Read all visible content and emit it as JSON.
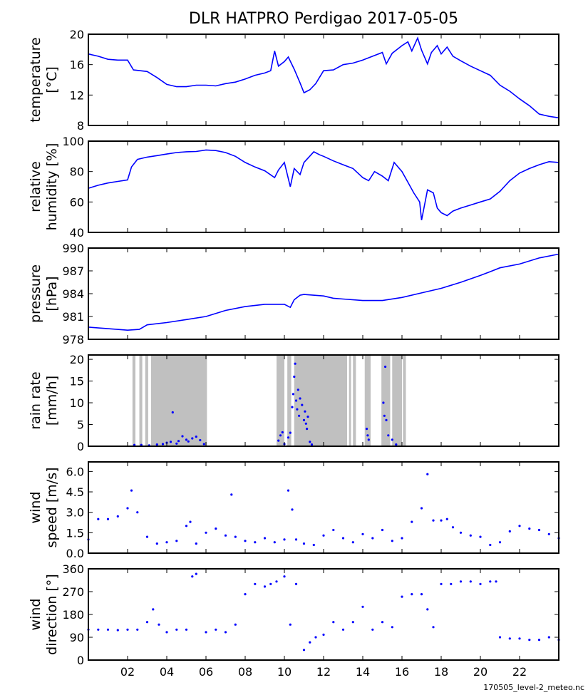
{
  "figure": {
    "title": "DLR HATPRO  Perdigao  2017-05-05",
    "footer": "170505_level-2_meteo.nc",
    "line_color": "#0000ff",
    "rain_band_color": "#c0c0c0"
  },
  "chart_data": [
    {
      "id": "temperature",
      "type": "line",
      "ylabel": [
        "temperature",
        "[°C]"
      ],
      "ylim": [
        8,
        20
      ],
      "yticks": [
        8,
        12,
        16,
        20
      ],
      "xlim": [
        0,
        24
      ],
      "x": [
        0,
        0.5,
        1,
        1.5,
        2,
        2.3,
        3,
        3.5,
        4,
        4.5,
        5,
        5.5,
        6,
        6.5,
        7,
        7.5,
        8,
        8.5,
        9,
        9.3,
        9.5,
        9.7,
        10,
        10.2,
        10.5,
        10.8,
        11,
        11.3,
        11.6,
        12,
        12.5,
        13,
        13.5,
        14,
        14.5,
        15,
        15.2,
        15.5,
        16,
        16.3,
        16.5,
        16.8,
        17,
        17.3,
        17.5,
        17.8,
        18,
        18.3,
        18.6,
        19,
        19.5,
        20,
        20.5,
        21,
        21.5,
        22,
        22.5,
        23,
        23.5,
        24
      ],
      "y": [
        17.4,
        17.1,
        16.7,
        16.6,
        16.6,
        15.3,
        15.1,
        14.3,
        13.4,
        13.1,
        13.1,
        13.3,
        13.3,
        13.2,
        13.5,
        13.7,
        14.1,
        14.6,
        14.9,
        15.2,
        17.8,
        15.8,
        16.4,
        17,
        15.4,
        13.6,
        12.3,
        12.7,
        13.5,
        15.2,
        15.3,
        16,
        16.2,
        16.6,
        17.1,
        17.6,
        16.1,
        17.5,
        18.5,
        19,
        17.8,
        19.5,
        17.9,
        16.1,
        17.6,
        18.5,
        17.4,
        18.3,
        17.1,
        16.5,
        15.8,
        15.2,
        14.6,
        13.3,
        12.5,
        11.5,
        10.6,
        9.5,
        9.2,
        9
      ],
      "series": [
        {
          "name": "temperature"
        }
      ]
    },
    {
      "id": "humidity",
      "type": "line",
      "ylabel": [
        "relative",
        "humidity [%]"
      ],
      "ylim": [
        40,
        100
      ],
      "yticks": [
        40,
        60,
        80,
        100
      ],
      "xlim": [
        0,
        24
      ],
      "x": [
        0,
        0.5,
        1,
        1.5,
        2,
        2.2,
        2.5,
        3,
        3.5,
        4,
        4.5,
        5,
        5.5,
        6,
        6.5,
        7,
        7.5,
        8,
        8.5,
        9,
        9.5,
        9.7,
        10,
        10.3,
        10.5,
        10.8,
        11,
        11.5,
        11.8,
        12,
        12.5,
        13,
        13.5,
        14,
        14.3,
        14.6,
        15,
        15.3,
        15.6,
        16,
        16.3,
        16.6,
        16.9,
        17,
        17.3,
        17.6,
        17.8,
        18,
        18.3,
        18.6,
        19,
        19.5,
        20,
        20.5,
        21,
        21.5,
        22,
        22.5,
        23,
        23.5,
        24
      ],
      "y": [
        69,
        71,
        72.5,
        73.5,
        74.5,
        83,
        88,
        89.5,
        90.5,
        91.5,
        92.5,
        93,
        93.2,
        94.2,
        93.8,
        92.5,
        90,
        86,
        83,
        80.5,
        76,
        81,
        86,
        70,
        82,
        78,
        86,
        93,
        91,
        90,
        87,
        84.5,
        82,
        76,
        74,
        80,
        77,
        74,
        86,
        80,
        73,
        66,
        60,
        48,
        68,
        66,
        56,
        53,
        51,
        54,
        56,
        58,
        60,
        62,
        67,
        74,
        79,
        82,
        84.5,
        86.5,
        86
      ]
    },
    {
      "id": "pressure",
      "type": "line",
      "ylabel": [
        "pressure",
        "[hPa]"
      ],
      "ylim": [
        978,
        990
      ],
      "yticks": [
        978,
        981,
        984,
        987,
        990
      ],
      "ytick_labels": [
        "978",
        "981",
        "984",
        "987",
        "990"
      ],
      "xlim": [
        0,
        24
      ],
      "x": [
        0,
        1,
        2,
        2.6,
        3,
        4,
        5,
        6,
        7,
        8,
        9,
        10,
        10.3,
        10.5,
        10.8,
        11,
        12,
        12.5,
        13,
        14,
        15,
        16,
        17,
        18,
        19,
        20,
        20.5,
        21,
        22,
        23,
        24
      ],
      "y": [
        979.6,
        979.4,
        979.2,
        979.3,
        979.9,
        980.2,
        980.6,
        981,
        981.8,
        982.3,
        982.6,
        982.6,
        982.2,
        983.2,
        983.8,
        983.9,
        983.7,
        983.4,
        983.3,
        983.1,
        983.1,
        983.5,
        984.1,
        984.7,
        985.5,
        986.4,
        986.9,
        987.4,
        987.9,
        988.7,
        989.2
      ]
    },
    {
      "id": "rain_rate",
      "type": "scatter",
      "ylabel": [
        "rain rate",
        "[mm/h]"
      ],
      "ylim": [
        0,
        21
      ],
      "yticks": [
        0,
        5,
        10,
        15,
        20
      ],
      "xlim": [
        0,
        24
      ],
      "rain_periods": [
        [
          2.25,
          2.4
        ],
        [
          2.6,
          2.75
        ],
        [
          2.9,
          3.05
        ],
        [
          3.2,
          6.05
        ],
        [
          9.6,
          10.0
        ],
        [
          10.15,
          10.35
        ],
        [
          10.5,
          13.2
        ],
        [
          13.3,
          13.4
        ],
        [
          13.5,
          13.65
        ],
        [
          14.1,
          14.4
        ],
        [
          14.95,
          15.4
        ],
        [
          15.5,
          16.0
        ],
        [
          16.05,
          16.2
        ]
      ],
      "x": [
        2.35,
        2.7,
        3.1,
        3.5,
        3.8,
        4.0,
        4.2,
        4.3,
        4.5,
        4.6,
        4.8,
        5.0,
        5.1,
        5.3,
        5.5,
        5.7,
        5.9,
        9.7,
        9.8,
        9.9,
        10.0,
        10.2,
        10.3,
        10.4,
        10.45,
        10.5,
        10.55,
        10.6,
        10.65,
        10.7,
        10.75,
        10.8,
        10.9,
        11.0,
        11.05,
        11.1,
        11.15,
        11.2,
        11.3,
        11.4,
        14.2,
        14.25,
        14.3,
        15.05,
        15.1,
        15.15,
        15.2,
        15.3,
        15.5,
        15.7
      ],
      "y": [
        0.3,
        0.3,
        0.2,
        0.4,
        0.5,
        0.8,
        1.0,
        7.8,
        0.6,
        1.2,
        2.3,
        1.5,
        1.1,
        1.8,
        2.2,
        1.4,
        0.5,
        1.3,
        2.5,
        3.2,
        0.5,
        2.0,
        3.1,
        9.0,
        12.0,
        16.0,
        19.0,
        10.5,
        8.5,
        13.0,
        7.0,
        11.0,
        9.5,
        6.0,
        8.0,
        5.2,
        4.0,
        6.8,
        1.0,
        0.4,
        4.0,
        2.5,
        1.5,
        10.0,
        7.0,
        18.3,
        6.0,
        2.5,
        1.5,
        0.4
      ]
    },
    {
      "id": "wind_speed",
      "type": "scatter",
      "ylabel": [
        "wind",
        "speed [m/s]"
      ],
      "ylim": [
        0,
        6.7
      ],
      "yticks": [
        0,
        1.5,
        3.0,
        4.5,
        6.0
      ],
      "ytick_labels": [
        "0.0",
        "1.5",
        "3.0",
        "4.5",
        "6.0"
      ],
      "xlim": [
        0,
        24
      ],
      "x": [
        0,
        0.5,
        1,
        1.5,
        2,
        2.2,
        2.5,
        3,
        3.5,
        4,
        4.5,
        5,
        5.2,
        5.5,
        6,
        6.5,
        7,
        7.3,
        7.5,
        8,
        8.5,
        9,
        9.5,
        10,
        10.2,
        10.4,
        10.6,
        11,
        11.5,
        12,
        12.5,
        13,
        13.5,
        14,
        14.5,
        15,
        15.5,
        16,
        16.5,
        17,
        17.3,
        17.6,
        18,
        18.3,
        18.6,
        19,
        19.5,
        20,
        20.5,
        21,
        21.5,
        22,
        22.5,
        23,
        23.5,
        24
      ],
      "y": [
        1.0,
        2.5,
        2.5,
        2.7,
        3.3,
        4.6,
        3.0,
        1.2,
        0.7,
        0.8,
        0.9,
        2.0,
        2.3,
        0.7,
        1.5,
        1.8,
        1.3,
        4.3,
        1.2,
        0.9,
        0.8,
        1.1,
        0.8,
        1.0,
        4.6,
        3.2,
        1.0,
        0.7,
        0.6,
        1.3,
        1.7,
        1.1,
        0.8,
        1.4,
        1.1,
        1.7,
        0.9,
        1.1,
        2.3,
        3.3,
        5.8,
        2.4,
        2.4,
        2.5,
        1.9,
        1.5,
        1.3,
        1.2,
        0.6,
        0.8,
        1.6,
        2.0,
        1.8,
        1.7,
        1.4,
        1.1
      ]
    },
    {
      "id": "wind_direction",
      "type": "scatter",
      "ylabel": [
        "wind",
        "direction [°]"
      ],
      "ylim": [
        0,
        360
      ],
      "yticks": [
        0,
        90,
        180,
        270,
        360
      ],
      "xlim": [
        0,
        24
      ],
      "xticks": [
        2,
        4,
        6,
        8,
        10,
        12,
        14,
        16,
        18,
        20,
        22
      ],
      "xtick_labels": [
        "02",
        "04",
        "06",
        "08",
        "10",
        "12",
        "14",
        "16",
        "18",
        "20",
        "22"
      ],
      "x": [
        0,
        0.5,
        1,
        1.5,
        2,
        2.5,
        3,
        3.3,
        3.6,
        4,
        4.5,
        5,
        5.3,
        5.5,
        6,
        6.5,
        7,
        7.5,
        8,
        8.5,
        9,
        9.3,
        9.6,
        10,
        10.3,
        10.6,
        11,
        11.3,
        11.6,
        12,
        12.5,
        13,
        13.5,
        14,
        14.5,
        15,
        15.5,
        16,
        16.5,
        17,
        17.3,
        17.6,
        18,
        18.5,
        19,
        19.5,
        20,
        20.5,
        20.8,
        21,
        21.5,
        22,
        22.5,
        23,
        23.5,
        24
      ],
      "y": [
        120,
        120,
        120,
        118,
        120,
        120,
        150,
        200,
        140,
        110,
        120,
        120,
        330,
        340,
        110,
        120,
        110,
        140,
        260,
        300,
        290,
        300,
        310,
        330,
        140,
        300,
        40,
        70,
        90,
        100,
        150,
        120,
        150,
        210,
        120,
        150,
        130,
        250,
        260,
        260,
        200,
        130,
        300,
        300,
        310,
        310,
        300,
        310,
        310,
        90,
        85,
        85,
        80,
        80,
        90,
        80
      ]
    }
  ]
}
